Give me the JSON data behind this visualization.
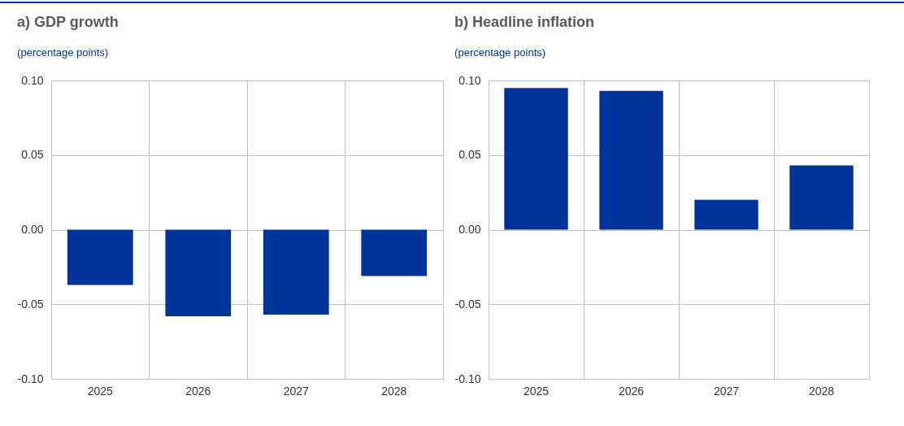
{
  "chart_data": [
    {
      "type": "bar",
      "title": "a) GDP growth",
      "subtitle": "(percentage points)",
      "categories": [
        "2025",
        "2026",
        "2027",
        "2028"
      ],
      "values": [
        -0.037,
        -0.058,
        -0.057,
        -0.031
      ],
      "color": "#003299",
      "ylim": [
        -0.1,
        0.1
      ],
      "yticks": [
        {
          "value": -0.1,
          "label": "-0.10"
        },
        {
          "value": -0.05,
          "label": "-0.05"
        },
        {
          "value": 0,
          "label": "0.00"
        },
        {
          "value": 0.05,
          "label": "0.05"
        },
        {
          "value": 0.1,
          "label": "0.10"
        }
      ],
      "grid": true
    },
    {
      "type": "bar",
      "title": "b) Headline inflation",
      "subtitle": "(percentage points)",
      "categories": [
        "2025",
        "2026",
        "2027",
        "2028"
      ],
      "values": [
        0.095,
        0.093,
        0.02,
        0.043
      ],
      "color": "#003299",
      "ylim": [
        -0.1,
        0.1
      ],
      "yticks": [
        {
          "value": -0.1,
          "label": "-0.10"
        },
        {
          "value": -0.05,
          "label": "-0.05"
        },
        {
          "value": 0,
          "label": "0.00"
        },
        {
          "value": 0.05,
          "label": "0.05"
        },
        {
          "value": 0.1,
          "label": "0.10"
        }
      ],
      "grid": true
    }
  ]
}
